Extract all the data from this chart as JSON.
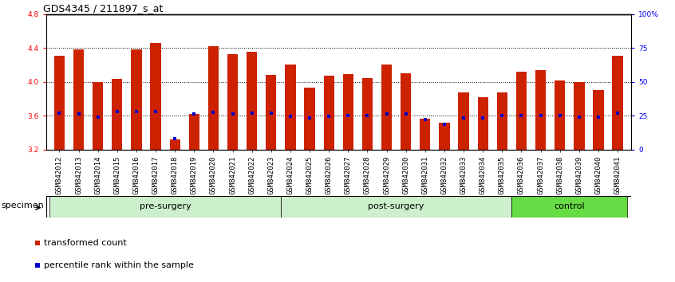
{
  "title": "GDS4345 / 211897_s_at",
  "samples": [
    "GSM842012",
    "GSM842013",
    "GSM842014",
    "GSM842015",
    "GSM842016",
    "GSM842017",
    "GSM842018",
    "GSM842019",
    "GSM842020",
    "GSM842021",
    "GSM842022",
    "GSM842023",
    "GSM842024",
    "GSM842025",
    "GSM842026",
    "GSM842027",
    "GSM842028",
    "GSM842029",
    "GSM842030",
    "GSM842031",
    "GSM842032",
    "GSM842033",
    "GSM842034",
    "GSM842035",
    "GSM842036",
    "GSM842037",
    "GSM842038",
    "GSM842039",
    "GSM842040",
    "GSM842041"
  ],
  "bar_values": [
    4.31,
    4.38,
    4.0,
    4.03,
    4.38,
    4.46,
    3.32,
    3.62,
    4.42,
    4.33,
    4.35,
    4.08,
    4.2,
    3.93,
    4.07,
    4.09,
    4.04,
    4.2,
    4.1,
    3.56,
    3.52,
    3.87,
    3.82,
    3.87,
    4.12,
    4.14,
    4.02,
    4.0,
    3.9,
    4.31
  ],
  "percentile_values": [
    3.63,
    3.62,
    3.58,
    3.65,
    3.65,
    3.65,
    3.33,
    3.62,
    3.64,
    3.62,
    3.63,
    3.63,
    3.59,
    3.57,
    3.59,
    3.6,
    3.6,
    3.62,
    3.62,
    3.55,
    3.5,
    3.57,
    3.57,
    3.6,
    3.6,
    3.6,
    3.6,
    3.58,
    3.58,
    3.63
  ],
  "bar_color": "#cc2200",
  "dot_color": "#0000cc",
  "bar_bottom": 3.2,
  "ylim_left": [
    3.2,
    4.8
  ],
  "ylim_right": [
    0,
    100
  ],
  "yticks_left": [
    3.2,
    3.6,
    4.0,
    4.4,
    4.8
  ],
  "yticks_right": [
    0,
    25,
    50,
    75,
    100
  ],
  "ytick_labels_right": [
    "0",
    "25",
    "50",
    "75",
    "100%"
  ],
  "grid_values": [
    3.6,
    4.0,
    4.4
  ],
  "group_labels": [
    "pre-surgery",
    "post-surgery",
    "control"
  ],
  "group_starts": [
    0,
    12,
    24
  ],
  "group_ends": [
    12,
    24,
    30
  ],
  "group_colors": [
    "#ccf0cc",
    "#ccf0cc",
    "#66dd44"
  ],
  "legend_items": [
    {
      "label": "transformed count",
      "color": "#cc2200"
    },
    {
      "label": "percentile rank within the sample",
      "color": "#0000cc"
    }
  ],
  "title_fontsize": 9,
  "tick_fontsize": 6.5,
  "label_fontsize": 8
}
